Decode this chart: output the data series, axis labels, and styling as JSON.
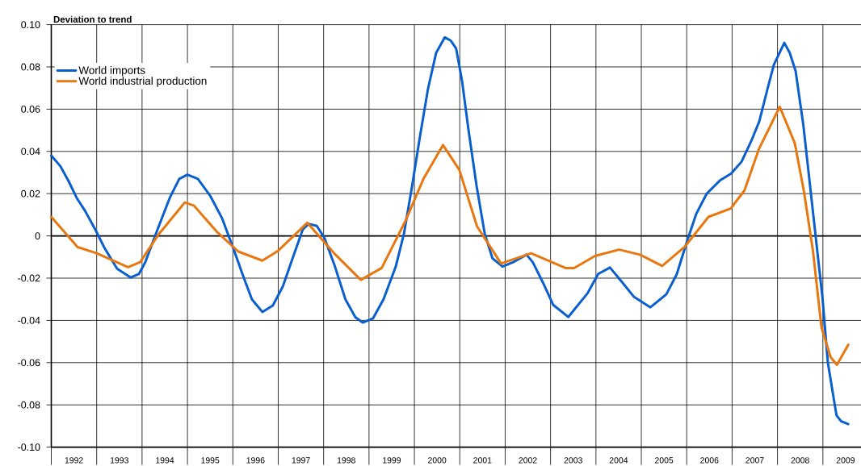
{
  "chart_data": {
    "type": "line",
    "ylabel": "Deviation to trend",
    "xlim": [
      1992,
      2009.84
    ],
    "ylim": [
      -0.1,
      0.1
    ],
    "xticks": [
      {
        "value": 1992,
        "label": null
      },
      {
        "value": 1993,
        "label": null
      },
      {
        "value": 1994,
        "label": null
      },
      {
        "value": 1995,
        "label": null
      },
      {
        "value": 1996,
        "label": null
      },
      {
        "value": 1997,
        "label": null
      },
      {
        "value": 1998,
        "label": null
      },
      {
        "value": 1999,
        "label": null
      },
      {
        "value": 2000,
        "label": null
      },
      {
        "value": 2001,
        "label": null
      },
      {
        "value": 2002,
        "label": null
      },
      {
        "value": 2003,
        "label": null
      },
      {
        "value": 2004,
        "label": null
      },
      {
        "value": 2005,
        "label": null
      },
      {
        "value": 2006,
        "label": null
      },
      {
        "value": 2007,
        "label": null
      },
      {
        "value": 2008,
        "label": null
      },
      {
        "value": 2009,
        "label": null
      },
      {
        "value": 1992.5,
        "label": "1992"
      },
      {
        "value": 1993.5,
        "label": "1993"
      },
      {
        "value": 1994.5,
        "label": "1994"
      },
      {
        "value": 1995.5,
        "label": "1995"
      },
      {
        "value": 1996.5,
        "label": "1996"
      },
      {
        "value": 1997.5,
        "label": "1997"
      },
      {
        "value": 1998.5,
        "label": "1998"
      },
      {
        "value": 1999.5,
        "label": "1999"
      },
      {
        "value": 2000.5,
        "label": "2000"
      },
      {
        "value": 2001.5,
        "label": "2001"
      },
      {
        "value": 2002.5,
        "label": "2002"
      },
      {
        "value": 2003.5,
        "label": "2003"
      },
      {
        "value": 2004.5,
        "label": "2004"
      },
      {
        "value": 2005.5,
        "label": "2005"
      },
      {
        "value": 2006.5,
        "label": "2006"
      },
      {
        "value": 2007.5,
        "label": "2007"
      },
      {
        "value": 2008.5,
        "label": "2008"
      },
      {
        "value": 2009.5,
        "label": "2009"
      }
    ],
    "yticks": [
      {
        "value": 0.1,
        "label": "0.10"
      },
      {
        "value": 0.08,
        "label": "0.08"
      },
      {
        "value": 0.06,
        "label": "0.06"
      },
      {
        "value": 0.04,
        "label": "0.04"
      },
      {
        "value": 0.02,
        "label": "0.02"
      },
      0,
      {
        "value": -0.02,
        "label": "-0.02"
      },
      {
        "value": -0.04,
        "label": "-0.04"
      },
      {
        "value": -0.06,
        "label": "-0.06"
      },
      {
        "value": -0.08,
        "label": "-0.08"
      },
      {
        "value": -0.1,
        "label": "-0.10"
      }
    ],
    "grid": true,
    "legend": "top left",
    "marker": "none",
    "line_style": "solid",
    "ref_lines": [
      {
        "axis": "y",
        "value": 0,
        "color": "#000000"
      }
    ],
    "series": [
      {
        "name": "World imports",
        "color": "#0a5fcf",
        "x": [
          1992.0,
          1992.2,
          1992.38,
          1992.56,
          1992.74,
          1992.97,
          1993.18,
          1993.45,
          1993.75,
          1993.93,
          1994.07,
          1994.34,
          1994.61,
          1994.82,
          1995.0,
          1995.23,
          1995.5,
          1995.76,
          1996.03,
          1996.21,
          1996.42,
          1996.65,
          1996.88,
          1997.1,
          1997.31,
          1997.54,
          1997.67,
          1997.85,
          1998.02,
          1998.25,
          1998.48,
          1998.7,
          1998.86,
          1999.09,
          1999.32,
          1999.59,
          1999.77,
          1999.95,
          2000.12,
          2000.3,
          2000.48,
          2000.67,
          2000.8,
          2000.92,
          2001.05,
          2001.19,
          2001.37,
          2001.55,
          2001.72,
          2001.94,
          2002.17,
          2002.47,
          2002.61,
          2002.83,
          2003.06,
          2003.39,
          2003.82,
          2004.05,
          2004.31,
          2004.58,
          2004.84,
          2005.2,
          2005.55,
          2005.78,
          2006.0,
          2006.21,
          2006.44,
          2006.74,
          2006.98,
          2007.21,
          2007.42,
          2007.6,
          2007.78,
          2007.92,
          2008.15,
          2008.27,
          2008.4,
          2008.57,
          2008.84,
          2008.99,
          2009.11,
          2009.23,
          2009.3,
          2009.4,
          2009.56
        ],
        "values": [
          0.038,
          0.033,
          0.026,
          0.018,
          0.012,
          0.003,
          -0.006,
          -0.0155,
          -0.0197,
          -0.018,
          -0.0125,
          0.003,
          0.018,
          0.027,
          0.029,
          0.027,
          0.019,
          0.0085,
          -0.007,
          -0.018,
          -0.03,
          -0.036,
          -0.033,
          -0.024,
          -0.011,
          0.003,
          0.0057,
          0.0047,
          -0.001,
          -0.0145,
          -0.03,
          -0.0385,
          -0.041,
          -0.039,
          -0.03,
          -0.0145,
          0.001,
          0.0237,
          0.0467,
          0.0696,
          0.0867,
          0.094,
          0.0925,
          0.0887,
          0.0734,
          0.0505,
          0.0237,
          0.001,
          -0.0106,
          -0.0145,
          -0.0125,
          -0.0089,
          -0.0125,
          -0.022,
          -0.0327,
          -0.0384,
          -0.027,
          -0.018,
          -0.015,
          -0.022,
          -0.0289,
          -0.0338,
          -0.0277,
          -0.0182,
          -0.003,
          0.0104,
          0.02,
          0.0264,
          0.0295,
          0.0352,
          0.0448,
          0.0543,
          0.0696,
          0.081,
          0.0914,
          0.0867,
          0.078,
          0.0524,
          0.0,
          -0.029,
          -0.06,
          -0.0758,
          -0.0849,
          -0.0877,
          -0.0891
        ]
      },
      {
        "name": "World industrial production",
        "color": "#e8770f",
        "x": [
          1992.0,
          1992.58,
          1993.0,
          1993.69,
          1993.96,
          1994.35,
          1994.94,
          1995.14,
          1995.66,
          1996.12,
          1996.65,
          1997.0,
          1997.64,
          1998.23,
          1998.82,
          1999.28,
          1999.81,
          2000.2,
          2000.63,
          2000.99,
          2001.38,
          2001.91,
          2002.57,
          2003.33,
          2003.52,
          2003.98,
          2004.51,
          2004.97,
          2005.46,
          2005.95,
          2006.48,
          2006.97,
          2007.27,
          2007.59,
          2008.05,
          2008.38,
          2008.58,
          2008.78,
          2008.97,
          2009.17,
          2009.31,
          2009.56
        ],
        "values": [
          0.009,
          -0.0053,
          -0.0082,
          -0.0148,
          -0.0124,
          0.0003,
          0.0158,
          0.0144,
          0.0017,
          -0.0074,
          -0.0117,
          -0.007,
          0.0062,
          -0.0082,
          -0.0208,
          -0.0152,
          0.0074,
          0.027,
          0.043,
          0.0313,
          0.0045,
          -0.0131,
          -0.0082,
          -0.0152,
          -0.0152,
          -0.0095,
          -0.0065,
          -0.0089,
          -0.0142,
          -0.0053,
          0.009,
          0.013,
          0.0214,
          0.0411,
          0.0611,
          0.044,
          0.0214,
          -0.0068,
          -0.0434,
          -0.0574,
          -0.061,
          -0.0515
        ]
      }
    ]
  }
}
